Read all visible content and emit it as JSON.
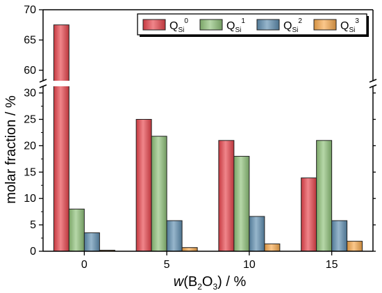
{
  "chart_data": {
    "type": "bar",
    "xlabel": {
      "italic": "w",
      "open": "(B",
      "sub1": "2",
      "mid": "O",
      "sub2": "3",
      "close": ") / %"
    },
    "ylabel": "molar fraction / %",
    "categories": [
      "0",
      "5",
      "10",
      "15"
    ],
    "y_axis_break": {
      "lower_range": [
        0,
        31
      ],
      "upper_range": [
        58.5,
        70
      ]
    },
    "lower_ticks": [
      "0",
      "5",
      "10",
      "15",
      "20",
      "25",
      "30"
    ],
    "upper_ticks": [
      "60",
      "65",
      "70"
    ],
    "legend_placement": "top-right",
    "series": [
      {
        "name": "Q_Si^0",
        "base": "Q",
        "sub": "Si",
        "sup": "0",
        "color": "#e8434b",
        "values": [
          67.5,
          25.0,
          21.0,
          13.9
        ]
      },
      {
        "name": "Q_Si^1",
        "base": "Q",
        "sub": "Si",
        "sup": "1",
        "color": "#8fc279",
        "values": [
          8.0,
          21.8,
          18.0,
          21.0
        ]
      },
      {
        "name": "Q_Si^2",
        "base": "Q",
        "sub": "Si",
        "sup": "2",
        "color": "#5f8eb1",
        "values": [
          3.5,
          5.8,
          6.6,
          5.8
        ]
      },
      {
        "name": "Q_Si^3",
        "base": "Q",
        "sub": "Si",
        "sup": "3",
        "color": "#f8a94c",
        "values": [
          0.2,
          0.7,
          1.4,
          1.9
        ]
      }
    ]
  }
}
